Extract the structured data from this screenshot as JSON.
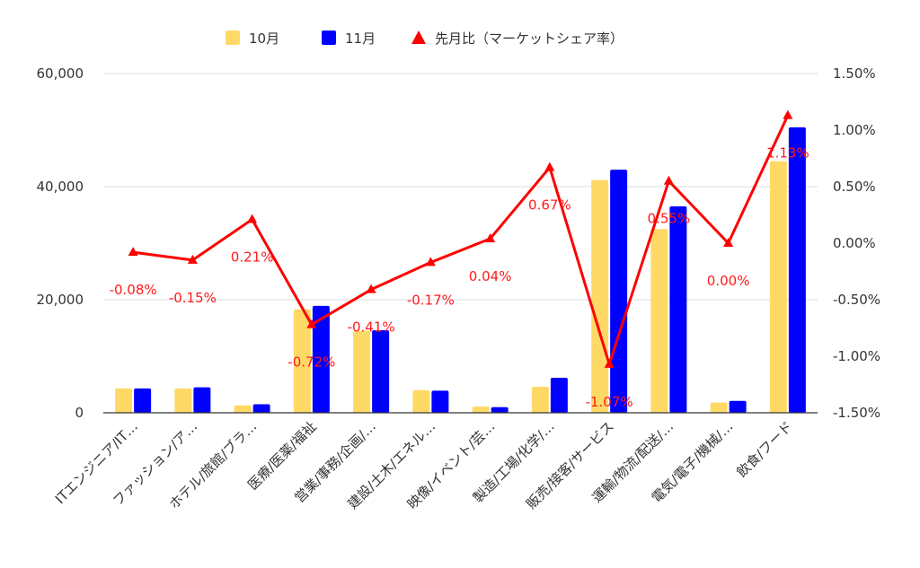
{
  "chart_data": {
    "type": "bar",
    "categories": [
      "ITエンジニア/IT…",
      "ファッション/ア…",
      "ホテル/旅館/ブラ…",
      "医療/医薬/福祉",
      "営業/事務/企画/…",
      "建設/土木/エネル…",
      "映像/イベント/芸…",
      "製造/工場/化学/…",
      "販売/接客/サービス",
      "運輸/物流/配送/…",
      "電気/電子/機械/…",
      "飲食/フード"
    ],
    "series": [
      {
        "name": "10月",
        "axis": "left",
        "kind": "bar",
        "color": "#FFD966",
        "values": [
          4300,
          4300,
          1300,
          18300,
          14500,
          4000,
          1100,
          4600,
          41200,
          32500,
          1800,
          44500
        ]
      },
      {
        "name": "11月",
        "axis": "left",
        "kind": "bar",
        "color": "#0000FF",
        "values": [
          4300,
          4500,
          1500,
          18900,
          14600,
          3900,
          1000,
          6200,
          43000,
          36500,
          2100,
          50500
        ]
      },
      {
        "name": "先月比（マーケットシェア率）",
        "axis": "right",
        "kind": "line",
        "color": "#FF0000",
        "values": [
          -0.08,
          -0.15,
          0.21,
          -0.72,
          -0.41,
          -0.17,
          0.04,
          0.67,
          -1.07,
          0.55,
          0.0,
          1.13
        ],
        "labels": [
          "-0.08%",
          "-0.15%",
          "0.21%",
          "-0.72%",
          "-0.41%",
          "-0.17%",
          "0.04%",
          "0.67%",
          "-1.07%",
          "0.55%",
          "0.00%",
          "1.13%"
        ]
      }
    ],
    "y_left": {
      "min": 0,
      "max": 60000,
      "ticks": [
        "0",
        "20,000",
        "40,000",
        "60,000"
      ],
      "tick_values": [
        0,
        20000,
        40000,
        60000
      ]
    },
    "y_right": {
      "min": -1.5,
      "max": 1.5,
      "ticks": [
        "-1.50%",
        "-1.00%",
        "-0.50%",
        "0.00%",
        "0.50%",
        "1.00%",
        "1.50%"
      ],
      "tick_values": [
        -1.5,
        -1.0,
        -0.5,
        0.0,
        0.5,
        1.0,
        1.5
      ]
    },
    "grid": true,
    "legend_position": "top-center"
  }
}
